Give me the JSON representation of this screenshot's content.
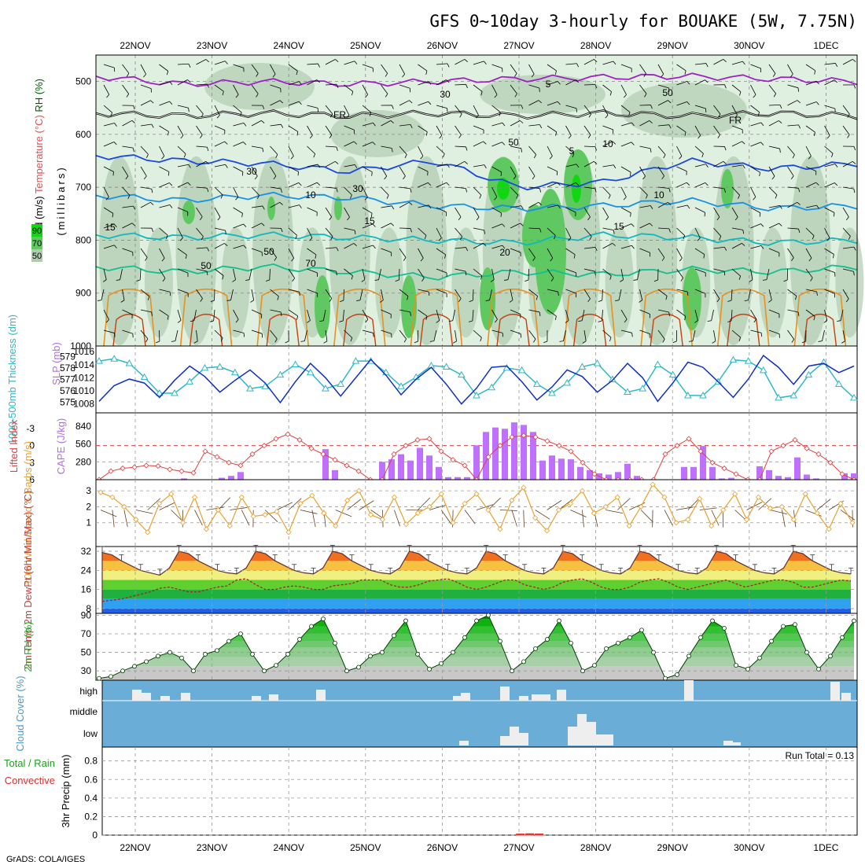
{
  "title": "GFS 0~10day 3-hourly for BOUAKE (5W, 7.75N)",
  "credit": "GrADS: COLA/IGES",
  "colors": {
    "purple": "#a020c8",
    "black": "#000000",
    "blue_dark": "#1848e0",
    "blue": "#1890e8",
    "teal": "#10b8c0",
    "green_teal": "#10c090",
    "orange": "#e89020",
    "dark_orange": "#c84010",
    "rh_light": "#e0f0e0",
    "rh_mid": "#b0ccb0",
    "rh_green": "#60c860",
    "rh_bright": "#10d810",
    "cape": "#c070ff",
    "lifted": "#e04040",
    "slp": "#1030c0",
    "thick": "#30b8c8",
    "wind10": "#e8a030",
    "cloud_bg": "#6aadd6",
    "cloud_bar": "#eeeeee",
    "rh2m": "#20b020"
  },
  "chart_data": [
    {
      "panel": "upper-air",
      "type": "contour",
      "title": "",
      "ylabel_parts": [
        "Wind (m/s)",
        "Temperature (°C)",
        "RH (%)"
      ],
      "ylabel_mid": "(millibars)",
      "x": [
        "22NOV",
        "23NOV",
        "24NOV",
        "25NOV",
        "26NOV",
        "27NOV",
        "28NOV",
        "29NOV",
        "30NOV",
        "1DEC"
      ],
      "yticks": [
        500,
        600,
        700,
        800,
        900,
        1000
      ],
      "ylim": [
        1000,
        450
      ],
      "rh_legend": [
        "90",
        "70",
        "50"
      ],
      "contour_labels": [
        "5",
        "FR",
        "FR",
        "5",
        "10",
        "10",
        "15",
        "15",
        "15",
        "20",
        "30",
        "30",
        "30",
        "50",
        "50",
        "50",
        "50",
        "70",
        "10"
      ],
      "temperature_levels": [
        {
          "name": "-5",
          "color": "purple",
          "p": [
            490,
            505,
            500,
            505,
            500,
            495,
            492,
            490,
            495,
            500
          ]
        },
        {
          "name": "FR",
          "color": "black",
          "p": [
            560,
            565,
            560,
            565,
            560,
            565,
            560,
            565,
            560,
            565
          ]
        },
        {
          "name": "5",
          "color": "blue_dark",
          "p": [
            640,
            650,
            655,
            670,
            650,
            700,
            690,
            650,
            665,
            655
          ]
        },
        {
          "name": "10",
          "color": "blue",
          "p": [
            715,
            725,
            715,
            720,
            735,
            740,
            735,
            725,
            740,
            735
          ]
        },
        {
          "name": "15",
          "color": "teal",
          "p": [
            790,
            795,
            790,
            795,
            800,
            805,
            790,
            795,
            805,
            800
          ]
        },
        {
          "name": "20",
          "color": "green_teal",
          "p": [
            850,
            860,
            850,
            860,
            870,
            860,
            865,
            855,
            860,
            850
          ]
        }
      ]
    },
    {
      "panel": "slp-thickness",
      "type": "line",
      "ylabel_left": "1000-500mb Thickness (dm)",
      "ylabel_right": "SLP (mb)",
      "yticks_thick": [
        575,
        576,
        577,
        578,
        579
      ],
      "yticks_slp": [
        1008,
        1010,
        1012,
        1014,
        1016
      ],
      "series": [
        {
          "name": "thickness",
          "values": [
            578.6,
            578.8,
            578.4,
            577.2,
            575.8,
            575.8,
            576.8,
            578.0,
            578.1,
            577.6,
            576.2,
            576.4,
            577.4,
            578.3,
            577.6,
            576.2,
            576.6,
            578.6,
            578.6,
            577.6,
            576.4,
            577.2,
            578.2,
            578.1,
            577.4,
            575.6,
            576.3,
            578.0,
            577.8,
            576.6,
            575.8,
            576.7,
            578.1,
            578.4,
            577.0,
            575.9,
            576.2,
            578.3,
            577.4,
            575.6,
            575.6,
            576.8,
            578.7,
            578.6,
            577.8,
            575.4,
            575.6,
            577.4,
            578.5,
            576.6,
            575.4
          ]
        },
        {
          "name": "slp",
          "values": [
            1008.4,
            1010.8,
            1011.8,
            1011.2,
            1009.0,
            1011.6,
            1013.8,
            1012.2,
            1009.8,
            1011.6,
            1013.2,
            1011.2,
            1008.2,
            1011.4,
            1014.2,
            1012.0,
            1009.2,
            1012.0,
            1014.8,
            1012.4,
            1009.4,
            1011.8,
            1013.6,
            1011.0,
            1008.0,
            1010.4,
            1013.6,
            1013.8,
            1011.4,
            1008.6,
            1010.6,
            1013.2,
            1012.2,
            1009.8,
            1011.6,
            1014.2,
            1012.0,
            1008.4,
            1011.2,
            1014.4,
            1013.6,
            1011.4,
            1009.0,
            1011.8,
            1015.4,
            1013.6,
            1011.0,
            1013.8,
            1014.2,
            1012.8,
            1013.8
          ]
        }
      ]
    },
    {
      "panel": "cape-li",
      "type": "bar",
      "ylabel_left": "Lifted Index",
      "ylabel_right": "CAPE (J/kg)",
      "yticks_li": [
        -3,
        0,
        3,
        6
      ],
      "yticks_cape": [
        280,
        560,
        840
      ],
      "series": [
        {
          "name": "CAPE",
          "values": [
            0,
            0,
            0,
            0,
            0,
            0,
            0,
            0,
            0,
            20,
            0,
            0,
            0,
            30,
            60,
            120,
            0,
            0,
            0,
            0,
            0,
            0,
            0,
            0,
            0,
            0,
            0,
            0,
            0,
            0,
            0,
            480,
            150,
            0,
            0,
            0,
            0,
            0,
            0,
            0,
            0,
            0,
            0,
            0,
            0,
            0,
            0,
            0,
            0,
            0,
            0,
            0,
            0,
            0,
            0,
            0,
            0,
            0,
            0,
            0,
            0,
            0,
            0,
            0,
            0,
            0,
            0,
            0,
            0,
            0,
            0,
            0,
            0,
            0,
            0,
            0,
            0,
            0,
            0,
            0
          ]
        },
        {
          "name": "LI",
          "values": [
            6,
            4.5,
            4.0,
            3.8,
            3.5,
            3.6,
            4.2,
            4.5,
            4.8,
            1.0,
            2.0,
            3.0,
            3.5,
            1.5,
            0.0,
            -1.2,
            -2.0,
            -1.0,
            0.5,
            1.5,
            2.5,
            3.5,
            4.5,
            6,
            6,
            1.5,
            0,
            -1,
            -1.2,
            1,
            2.5,
            3.5,
            6,
            2,
            0,
            -1.5,
            -1.8,
            -1.5,
            -0.8,
            0,
            1,
            3,
            5,
            6,
            6,
            6,
            6,
            6,
            1.5,
            0,
            -1.2,
            1,
            3,
            4,
            5,
            6,
            6,
            1,
            0,
            -1,
            0.5,
            1.5,
            3,
            5,
            6
          ]
        }
      ]
    },
    {
      "panel": "wind10",
      "type": "line",
      "ylabel": "10m Wind Speed & Barbs (m/s)",
      "yticks": [
        1,
        2,
        3
      ],
      "series": [
        {
          "name": "speed",
          "values": [
            2.9,
            2.6,
            2.0,
            1.2,
            0.4,
            2.2,
            2.8,
            1.0,
            2.6,
            0.6,
            1.8,
            0.8,
            2.6,
            1.4,
            1.5,
            1.7,
            0.4,
            2.2,
            2.7,
            1.6,
            0.8,
            2.4,
            3.0,
            1.5,
            1.2,
            2.6,
            0.9,
            1.6,
            2.0,
            2.8,
            1.0,
            2.2,
            2.8,
            1.8,
            0.6,
            2.4,
            3.2,
            1.3,
            0.5,
            1.8,
            2.2,
            3.0,
            1.6,
            2.0,
            2.6,
            0.8,
            2.0,
            3.4,
            2.6,
            1.0,
            1.2,
            2.5,
            0.8,
            1.8,
            2.8,
            1.2,
            2.6,
            1.9,
            2.0,
            1.2,
            2.8,
            1.6,
            0.6,
            2.2,
            1.0
          ]
        }
      ]
    },
    {
      "panel": "temp-dewpt",
      "type": "area",
      "ylabel": "2m Temp 2m DewPt (6hr Min/Max) (°C)",
      "yticks": [
        8,
        16,
        24,
        32
      ],
      "ylim": [
        6,
        34
      ],
      "series": [
        {
          "name": "temp",
          "values": [
            31.5,
            30.5,
            28,
            26,
            24,
            23,
            22,
            25,
            32,
            31,
            28,
            26,
            24,
            23,
            22.5,
            25,
            32,
            31,
            28,
            26,
            24,
            23,
            22.5,
            25,
            32,
            31,
            28,
            26,
            24,
            23,
            22.5,
            25,
            32,
            31,
            28,
            26,
            24,
            23,
            22.5,
            25,
            32,
            31,
            28,
            26,
            24,
            23,
            22.5,
            25,
            32,
            31,
            28,
            26,
            24,
            23,
            22.5,
            25,
            32,
            31,
            28,
            26,
            24,
            23,
            22.5,
            25,
            32,
            31,
            28,
            26,
            24,
            23,
            22.5,
            25,
            32,
            31,
            28,
            26,
            24,
            23,
            22.5
          ]
        },
        {
          "name": "dewpt",
          "values": [
            11,
            11.5,
            12,
            13,
            14,
            15,
            16.5,
            17,
            16,
            15,
            15,
            16,
            17,
            17.5,
            20,
            20.5,
            18,
            16,
            16,
            17,
            17.5,
            17,
            16,
            16,
            17.5,
            18,
            18.5,
            20,
            20,
            20,
            18,
            17,
            17,
            18,
            19.5,
            20,
            20.5,
            19,
            17,
            16,
            17,
            18.5,
            20,
            20,
            18,
            17,
            16,
            17,
            19,
            20,
            20.5,
            19,
            17,
            16,
            16,
            17,
            19,
            20,
            20.5,
            19,
            17,
            16,
            17,
            18,
            19,
            20,
            18.5,
            17,
            18,
            19,
            20,
            20,
            19,
            17,
            17,
            18,
            19,
            20,
            19.5
          ]
        }
      ]
    },
    {
      "panel": "rh2m",
      "type": "area",
      "ylabel": "2m RH (%)",
      "yticks": [
        30,
        50,
        70,
        90
      ],
      "ylim": [
        20,
        92
      ],
      "series": [
        {
          "name": "rh",
          "values": [
            22,
            24,
            30,
            35,
            40,
            46,
            50,
            44,
            30,
            48,
            52,
            62,
            70,
            48,
            30,
            36,
            48,
            64,
            78,
            86,
            60,
            30,
            34,
            46,
            50,
            68,
            84,
            48,
            32,
            38,
            50,
            66,
            84,
            90,
            62,
            30,
            40,
            54,
            64,
            84,
            60,
            30,
            36,
            54,
            60,
            66,
            74,
            50,
            22,
            26,
            46,
            66,
            84,
            76,
            36,
            32,
            44,
            62,
            78,
            80,
            50,
            32,
            46,
            66,
            84
          ]
        }
      ]
    },
    {
      "panel": "cloud",
      "type": "bar",
      "ylabel": "Cloud Cover (%)",
      "category_labels": [
        "high",
        "middle",
        "low"
      ],
      "series": [
        {
          "name": "high",
          "values": [
            0,
            0,
            0,
            0,
            1,
            0,
            0,
            1,
            0,
            0,
            0,
            0,
            0,
            1,
            0,
            0,
            0,
            2,
            0,
            0,
            0,
            0,
            0,
            0,
            0,
            0,
            0,
            0,
            0,
            0,
            0,
            0,
            0,
            1,
            0,
            0,
            0,
            0,
            0,
            2,
            0,
            1,
            1,
            0,
            0,
            0,
            0,
            0,
            0,
            0,
            0,
            0,
            0,
            0,
            3,
            0,
            0,
            0,
            0,
            0,
            0,
            0,
            0,
            0,
            0
          ]
        },
        {
          "name": "low",
          "values": [
            0,
            0,
            0,
            0,
            0,
            0,
            0,
            0,
            0,
            0,
            0,
            0,
            0,
            0,
            0,
            0,
            0,
            0,
            0,
            0,
            0,
            0,
            0,
            0,
            0,
            0,
            0,
            0,
            0,
            0,
            0,
            0,
            1,
            2,
            2,
            1,
            0,
            0,
            1,
            3,
            2,
            2,
            0,
            0,
            0,
            0,
            0,
            0,
            0,
            0,
            1,
            0,
            0,
            0,
            0,
            0,
            0,
            0,
            0,
            0,
            0,
            0,
            0,
            0,
            0
          ]
        }
      ]
    },
    {
      "panel": "precip",
      "type": "bar",
      "ylabel": "3hr Precip (mm)",
      "legend": [
        "Total / Rain",
        "Convective"
      ],
      "annotation": "Run Total = 0.13",
      "yticks": [
        0,
        0.2,
        0.4,
        0.6,
        0.8
      ],
      "ylim": [
        0,
        0.95
      ],
      "series": [
        {
          "name": "total",
          "values": [
            0,
            0,
            0,
            0,
            0,
            0,
            0,
            0,
            0,
            0,
            0,
            0,
            0,
            0,
            0,
            0,
            0,
            0,
            0,
            0,
            0,
            0,
            0,
            0,
            0,
            0,
            0,
            0,
            0,
            0,
            0,
            0,
            0,
            0,
            0,
            0,
            0,
            0,
            0,
            0,
            0,
            0,
            0,
            0.04,
            0.05,
            0.04,
            0,
            0,
            0,
            0,
            0,
            0,
            0,
            0,
            0,
            0,
            0,
            0,
            0,
            0,
            0,
            0,
            0,
            0,
            0,
            0,
            0,
            0,
            0,
            0,
            0,
            0,
            0,
            0,
            0,
            0,
            0,
            0,
            0,
            0,
            0
          ]
        }
      ]
    }
  ]
}
